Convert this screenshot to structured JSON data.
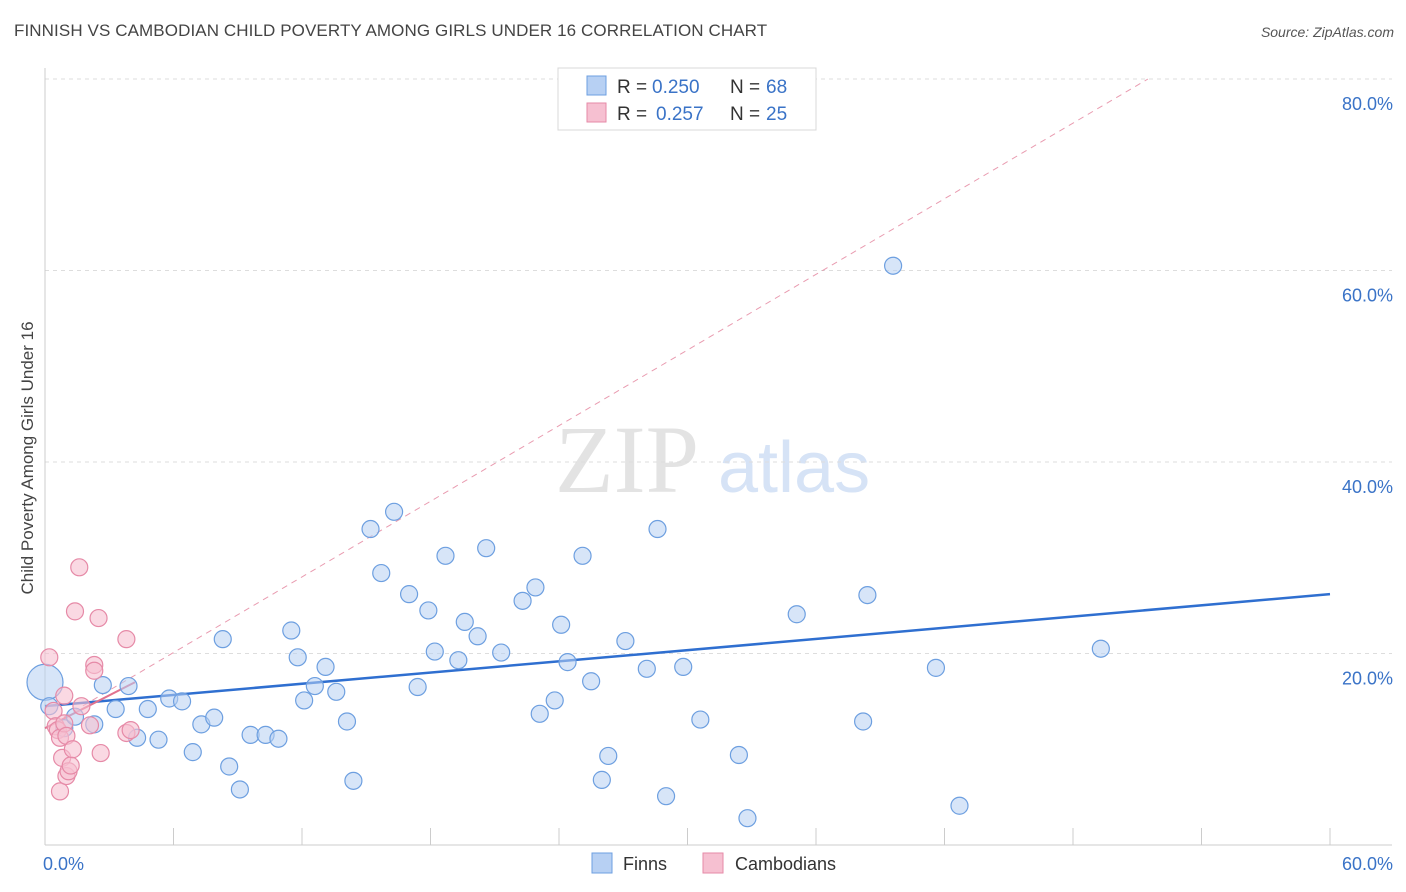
{
  "title": "FINNISH VS CAMBODIAN CHILD POVERTY AMONG GIRLS UNDER 16 CORRELATION CHART",
  "source": "Source: ZipAtlas.com",
  "watermark": {
    "zip": "ZIP",
    "atlas": "atlas"
  },
  "colors": {
    "finns_fill": "#b7d0f3",
    "finns_stroke": "#6d9fe0",
    "finns_line": "#2f6fd0",
    "camb_fill": "#f6c0d1",
    "camb_stroke": "#e68aa7",
    "camb_line": "#e0728f",
    "grid": "#dddddd",
    "tick_text": "#3a73c7"
  },
  "legend": {
    "rows": [
      {
        "r_label": "R = ",
        "r_value": "0.250",
        "n_label": "N = ",
        "n_value": "68"
      },
      {
        "r_label": "R = ",
        "r_value": "0.257",
        "n_label": "N = ",
        "n_value": "25"
      }
    ]
  },
  "chart_data": {
    "type": "scatter",
    "title": "FINNISH VS CAMBODIAN CHILD POVERTY AMONG GIRLS UNDER 16 CORRELATION CHART",
    "xlabel": "",
    "ylabel": "Child Poverty Among Girls Under 16",
    "xlim": [
      0,
      60
    ],
    "ylim": [
      0,
      80
    ],
    "x_tick_labels": [
      "0.0%",
      "60.0%"
    ],
    "y_ticks": [
      20,
      40,
      60,
      80
    ],
    "y_tick_labels": [
      "20.0%",
      "40.0%",
      "60.0%",
      "80.0%"
    ],
    "grid": true,
    "legend_position": "top-center",
    "series": [
      {
        "name": "Finns",
        "r": 0.25,
        "n": 68,
        "trend": {
          "x": [
            0,
            60
          ],
          "y": [
            14.5,
            26.2
          ]
        },
        "points": [
          {
            "x": 0.0,
            "y": 17.0,
            "big": true
          },
          {
            "x": 0.9,
            "y": 12.2
          },
          {
            "x": 1.4,
            "y": 13.4
          },
          {
            "x": 2.3,
            "y": 12.6
          },
          {
            "x": 2.7,
            "y": 16.7
          },
          {
            "x": 3.3,
            "y": 14.2
          },
          {
            "x": 3.9,
            "y": 16.6
          },
          {
            "x": 4.3,
            "y": 11.2
          },
          {
            "x": 4.8,
            "y": 14.2
          },
          {
            "x": 5.3,
            "y": 11.0
          },
          {
            "x": 5.8,
            "y": 15.3
          },
          {
            "x": 6.4,
            "y": 15.0
          },
          {
            "x": 6.9,
            "y": 9.7
          },
          {
            "x": 7.3,
            "y": 12.6
          },
          {
            "x": 7.9,
            "y": 13.3
          },
          {
            "x": 8.3,
            "y": 21.5
          },
          {
            "x": 8.6,
            "y": 8.2
          },
          {
            "x": 9.1,
            "y": 5.8
          },
          {
            "x": 9.6,
            "y": 11.5
          },
          {
            "x": 10.3,
            "y": 11.5
          },
          {
            "x": 10.9,
            "y": 11.1
          },
          {
            "x": 11.5,
            "y": 22.4
          },
          {
            "x": 11.8,
            "y": 19.6
          },
          {
            "x": 12.1,
            "y": 15.1
          },
          {
            "x": 12.6,
            "y": 16.6
          },
          {
            "x": 13.1,
            "y": 18.6
          },
          {
            "x": 13.6,
            "y": 16.0
          },
          {
            "x": 14.1,
            "y": 12.9
          },
          {
            "x": 14.4,
            "y": 6.7
          },
          {
            "x": 15.2,
            "y": 33.0
          },
          {
            "x": 15.7,
            "y": 28.4
          },
          {
            "x": 16.3,
            "y": 34.8
          },
          {
            "x": 17.0,
            "y": 26.2
          },
          {
            "x": 17.4,
            "y": 16.5
          },
          {
            "x": 17.9,
            "y": 24.5
          },
          {
            "x": 18.2,
            "y": 20.2
          },
          {
            "x": 18.7,
            "y": 30.2
          },
          {
            "x": 19.3,
            "y": 19.3
          },
          {
            "x": 19.6,
            "y": 23.3
          },
          {
            "x": 20.2,
            "y": 21.8
          },
          {
            "x": 20.6,
            "y": 31.0
          },
          {
            "x": 21.3,
            "y": 20.1
          },
          {
            "x": 22.3,
            "y": 25.5
          },
          {
            "x": 22.9,
            "y": 26.9
          },
          {
            "x": 23.1,
            "y": 13.7
          },
          {
            "x": 23.8,
            "y": 15.1
          },
          {
            "x": 24.1,
            "y": 23.0
          },
          {
            "x": 24.4,
            "y": 19.1
          },
          {
            "x": 25.1,
            "y": 30.2
          },
          {
            "x": 25.5,
            "y": 17.1
          },
          {
            "x": 26.0,
            "y": 6.8
          },
          {
            "x": 26.3,
            "y": 9.3
          },
          {
            "x": 27.1,
            "y": 21.3
          },
          {
            "x": 28.1,
            "y": 18.4
          },
          {
            "x": 28.6,
            "y": 33.0
          },
          {
            "x": 29.0,
            "y": 5.1
          },
          {
            "x": 29.8,
            "y": 18.6
          },
          {
            "x": 30.6,
            "y": 13.1
          },
          {
            "x": 32.4,
            "y": 9.4
          },
          {
            "x": 32.8,
            "y": 2.8
          },
          {
            "x": 35.1,
            "y": 24.1
          },
          {
            "x": 38.2,
            "y": 12.9
          },
          {
            "x": 38.4,
            "y": 26.1
          },
          {
            "x": 39.6,
            "y": 60.5
          },
          {
            "x": 41.6,
            "y": 18.5
          },
          {
            "x": 42.7,
            "y": 4.1
          },
          {
            "x": 49.3,
            "y": 20.5
          },
          {
            "x": 0.2,
            "y": 14.5
          }
        ]
      },
      {
        "name": "Cambodians",
        "r": 0.257,
        "n": 25,
        "trend": {
          "x": [
            0,
            4.2
          ],
          "y": [
            12.2,
            17.0
          ]
        },
        "trend_ext": {
          "x": [
            0,
            51.5
          ],
          "y": [
            12.2,
            80
          ]
        },
        "points": [
          {
            "x": 0.2,
            "y": 19.6
          },
          {
            "x": 0.4,
            "y": 14.0
          },
          {
            "x": 0.5,
            "y": 12.4
          },
          {
            "x": 0.6,
            "y": 12.0
          },
          {
            "x": 0.7,
            "y": 11.2
          },
          {
            "x": 0.8,
            "y": 9.1
          },
          {
            "x": 0.7,
            "y": 5.6
          },
          {
            "x": 0.9,
            "y": 12.7
          },
          {
            "x": 0.9,
            "y": 15.6
          },
          {
            "x": 1.0,
            "y": 11.4
          },
          {
            "x": 1.0,
            "y": 7.2
          },
          {
            "x": 1.1,
            "y": 7.7
          },
          {
            "x": 1.2,
            "y": 8.3
          },
          {
            "x": 1.3,
            "y": 10.0
          },
          {
            "x": 1.4,
            "y": 24.4
          },
          {
            "x": 1.6,
            "y": 29.0
          },
          {
            "x": 1.7,
            "y": 14.5
          },
          {
            "x": 2.1,
            "y": 12.5
          },
          {
            "x": 2.3,
            "y": 18.8
          },
          {
            "x": 2.3,
            "y": 18.2
          },
          {
            "x": 2.5,
            "y": 23.7
          },
          {
            "x": 2.6,
            "y": 9.6
          },
          {
            "x": 3.8,
            "y": 21.5
          },
          {
            "x": 3.8,
            "y": 11.7
          },
          {
            "x": 4.0,
            "y": 12.0
          }
        ]
      }
    ]
  }
}
